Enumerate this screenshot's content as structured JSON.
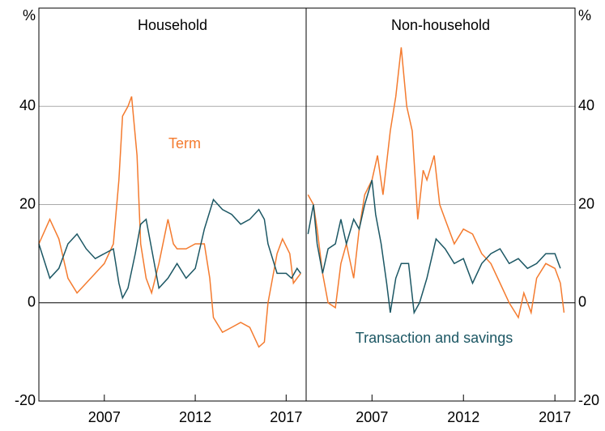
{
  "chart_data": [
    {
      "type": "line",
      "title": "Household",
      "ylabel": "%",
      "axis_side": "left",
      "xlim": [
        2003.4,
        2018.1
      ],
      "xticks": [
        2007,
        2012,
        2017
      ],
      "ylim": [
        -20,
        60
      ],
      "yticks": [
        -20,
        0,
        20,
        40
      ],
      "grid": true,
      "annotations": [
        "Term"
      ],
      "series": [
        {
          "name": "Term",
          "color": "#f47b2f",
          "x": [
            2003.4,
            2004,
            2004.5,
            2005,
            2005.5,
            2006,
            2006.5,
            2007,
            2007.5,
            2007.8,
            2008,
            2008.3,
            2008.5,
            2008.8,
            2009,
            2009.3,
            2009.6,
            2010,
            2010.5,
            2010.8,
            2011,
            2011.5,
            2012,
            2012.5,
            2012.8,
            2013,
            2013.5,
            2014,
            2014.5,
            2015,
            2015.5,
            2015.8,
            2016,
            2016.5,
            2016.8,
            2017.2,
            2017.4,
            2017.8
          ],
          "values": [
            12,
            17,
            13,
            5,
            2,
            4,
            6,
            8,
            12,
            25,
            38,
            40,
            42,
            30,
            12,
            5,
            2,
            8,
            17,
            12,
            11,
            11,
            12,
            12,
            5,
            -3,
            -6,
            -5,
            -4,
            -5,
            -9,
            -8,
            0,
            10,
            13,
            10,
            4,
            6
          ]
        },
        {
          "name": "Transaction and savings",
          "color": "#1c5764",
          "x": [
            2003.4,
            2004,
            2004.5,
            2005,
            2005.5,
            2006,
            2006.5,
            2007,
            2007.5,
            2007.8,
            2008,
            2008.3,
            2008.7,
            2009,
            2009.3,
            2009.6,
            2010,
            2010.5,
            2011,
            2011.5,
            2012,
            2012.5,
            2013,
            2013.5,
            2014,
            2014.5,
            2015,
            2015.5,
            2015.8,
            2016,
            2016.5,
            2017,
            2017.3,
            2017.6,
            2017.8
          ],
          "values": [
            12,
            5,
            7,
            12,
            14,
            11,
            9,
            10,
            11,
            4,
            1,
            3,
            10,
            16,
            17,
            11,
            3,
            5,
            8,
            5,
            7,
            15,
            21,
            19,
            18,
            16,
            17,
            19,
            17,
            12,
            6,
            6,
            5,
            7,
            6
          ]
        }
      ]
    },
    {
      "type": "line",
      "title": "Non-household",
      "ylabel": "%",
      "axis_side": "right",
      "xlim": [
        2003.4,
        2018.1
      ],
      "xticks": [
        2007,
        2012,
        2017
      ],
      "ylim": [
        -20,
        60
      ],
      "yticks": [
        -20,
        0,
        20,
        40
      ],
      "grid": true,
      "annotations": [
        "Transaction and savings"
      ],
      "series": [
        {
          "name": "Term",
          "color": "#f47b2f",
          "x": [
            2003.5,
            2003.8,
            2004,
            2004.3,
            2004.6,
            2005,
            2005.3,
            2005.6,
            2006,
            2006.3,
            2006.6,
            2007,
            2007.3,
            2007.6,
            2008,
            2008.3,
            2008.6,
            2008.9,
            2009.2,
            2009.5,
            2009.8,
            2010,
            2010.4,
            2010.7,
            2011,
            2011.5,
            2012,
            2012.5,
            2013,
            2013.5,
            2014,
            2014.5,
            2015,
            2015.3,
            2015.7,
            2016,
            2016.5,
            2017,
            2017.3,
            2017.5
          ],
          "values": [
            22,
            20,
            15,
            6,
            0,
            -1,
            8,
            12,
            5,
            15,
            22,
            25,
            30,
            22,
            35,
            42,
            52,
            40,
            35,
            17,
            27,
            25,
            30,
            20,
            17,
            12,
            15,
            14,
            10,
            8,
            4,
            0,
            -3,
            2,
            -2,
            5,
            8,
            7,
            4,
            -2
          ]
        },
        {
          "name": "Transaction and savings",
          "color": "#1c5764",
          "x": [
            2003.5,
            2003.8,
            2004,
            2004.3,
            2004.6,
            2005,
            2005.3,
            2005.6,
            2006,
            2006.3,
            2006.6,
            2007,
            2007.2,
            2007.5,
            2007.8,
            2008,
            2008.3,
            2008.6,
            2009,
            2009.3,
            2009.6,
            2010,
            2010.5,
            2011,
            2011.5,
            2012,
            2012.5,
            2013,
            2013.5,
            2014,
            2014.5,
            2015,
            2015.5,
            2016,
            2016.5,
            2017,
            2017.3
          ],
          "values": [
            14,
            20,
            12,
            6,
            11,
            12,
            17,
            12,
            17,
            15,
            20,
            25,
            18,
            12,
            4,
            -2,
            5,
            8,
            8,
            -2,
            0,
            5,
            13,
            11,
            8,
            9,
            4,
            8,
            10,
            11,
            8,
            9,
            7,
            8,
            10,
            10,
            7
          ]
        }
      ]
    }
  ]
}
